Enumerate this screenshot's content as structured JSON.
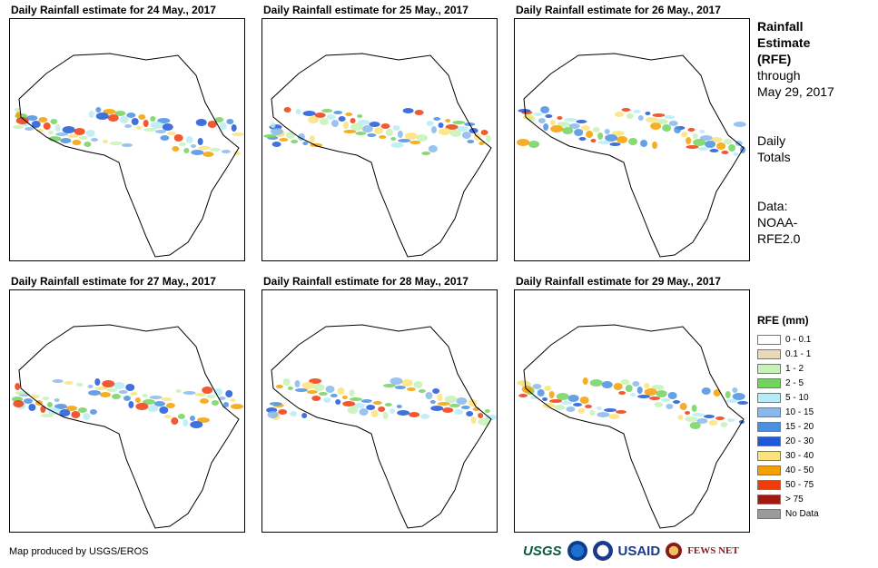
{
  "panels": [
    {
      "title": "Daily Rainfall estimate for 24 May., 2017"
    },
    {
      "title": "Daily Rainfall estimate for 25 May., 2017"
    },
    {
      "title": "Daily Rainfall estimate for 26 May., 2017"
    },
    {
      "title": "Daily Rainfall estimate for 27 May., 2017"
    },
    {
      "title": "Daily Rainfall estimate for 28 May., 2017"
    },
    {
      "title": "Daily Rainfall estimate for 29 May., 2017"
    }
  ],
  "side": {
    "title_line1": "Rainfall",
    "title_line2": "Estimate",
    "title_line3": "(RFE)",
    "through_label": "through",
    "through_date": "May 29, 2017",
    "totals_line1": "Daily",
    "totals_line2": "Totals",
    "data_line1": "Data:",
    "data_line2": "NOAA-",
    "data_line3": "RFE2.0"
  },
  "legend": {
    "title": "RFE (mm)",
    "items": [
      {
        "label": "0 - 0.1",
        "color": "#ffffff"
      },
      {
        "label": "0.1 - 1",
        "color": "#ead9b8"
      },
      {
        "label": "1 - 2",
        "color": "#c5f2b6"
      },
      {
        "label": "2 - 5",
        "color": "#72d45f"
      },
      {
        "label": "5 - 10",
        "color": "#b7ecf5"
      },
      {
        "label": "10 - 15",
        "color": "#88b8ec"
      },
      {
        "label": "15 - 20",
        "color": "#4b8fe0"
      },
      {
        "label": "20 - 30",
        "color": "#1f58d8"
      },
      {
        "label": "30 - 40",
        "color": "#fbe27a"
      },
      {
        "label": "40 - 50",
        "color": "#f4a000"
      },
      {
        "label": "50 - 75",
        "color": "#f03c0c"
      },
      {
        "label": "> 75",
        "color": "#a01a10"
      },
      {
        "label": "No Data",
        "color": "#9a9a9a"
      }
    ]
  },
  "credit": "Map produced by USGS/EROS",
  "logos": {
    "usgs": "USGS",
    "usaid": "USAID",
    "fews": "FEWS NET"
  }
}
